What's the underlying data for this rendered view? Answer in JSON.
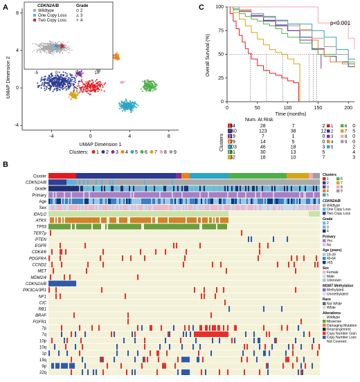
{
  "panels": {
    "a": "A",
    "b": "B",
    "c": "C"
  },
  "colors": {
    "c1": "#e41a1c",
    "c2": "#2b3a8f",
    "c3": "#7b3294",
    "c4": "#ef7f1a",
    "c5": "#2aa5c4",
    "c6": "#4daf4a",
    "c7": "#d4a516",
    "c8": "#f4a6b7",
    "c9": "#9e9e9e",
    "bg": "#f3f1d7",
    "wildtype": "#aaaaaa",
    "one_copy": "#5ab4dc",
    "two_copy": "#d62728",
    "gain": "#e4312b",
    "loss": "#2e5aa8",
    "atrx": "#d4812a",
    "tp53": "#6a9f3a",
    "idh": "#c9e3a9"
  },
  "umap": {
    "xlabel": "UMAP Dimension 1",
    "ylabel": "UMAP Dimension 2",
    "xticks": [
      "-4",
      "0",
      "4",
      "8"
    ],
    "yticks": [
      "-4",
      "0",
      "4",
      "8"
    ],
    "inset_xticks": [
      "-5",
      "0",
      "5",
      "10"
    ],
    "inset_legend_title": "CDKN2A/B",
    "inset_legend": [
      "Wildtype",
      "One Copy Loss",
      "Two Copy Loss"
    ],
    "grade_title": "Grade",
    "grade_legend": [
      "2",
      "3",
      "4"
    ],
    "clusters_label": "Clusters:",
    "clusters": [
      "1",
      "2",
      "3",
      "4",
      "5",
      "6",
      "7",
      "8",
      "9"
    ]
  },
  "chart_data": [
    {
      "type": "scatter",
      "title": "",
      "xlabel": "UMAP Dimension 1",
      "ylabel": "UMAP Dimension 2",
      "xlim": [
        -7,
        9
      ],
      "ylim": [
        -4.5,
        8.5
      ],
      "series": [
        {
          "name": "1",
          "cx": 0.0,
          "cy": 0.1,
          "n": 84
        },
        {
          "name": "2",
          "cx": -3.3,
          "cy": 0.6,
          "n": 240
        },
        {
          "name": "3",
          "cx": -1.2,
          "cy": 1.5,
          "n": 19
        },
        {
          "name": "4",
          "cx": 2.6,
          "cy": 3.3,
          "n": 29
        },
        {
          "name": "5",
          "cx": 3.8,
          "cy": -1.9,
          "n": 103
        },
        {
          "name": "6",
          "cx": 6.0,
          "cy": 0.2,
          "n": 81
        },
        {
          "name": "7",
          "cx": -1.7,
          "cy": -0.8,
          "n": 32
        },
        {
          "name": "8",
          "cx": 3.2,
          "cy": 0.6,
          "n": 8
        },
        {
          "name": "9",
          "cx": 0.8,
          "cy": 1.9,
          "n": 8
        }
      ]
    },
    {
      "type": "line",
      "title": "",
      "pvalue": "p<0.001",
      "xlabel": "Time (months)",
      "ylabel": "Overall Survival (%)",
      "xlim": [
        0,
        210
      ],
      "ylim": [
        0,
        100
      ],
      "xticks": [
        "0",
        "50",
        "100",
        "150",
        "200"
      ],
      "yticks": [
        "0",
        "25",
        "50",
        "75",
        "100"
      ],
      "series": [
        {
          "name": "1",
          "x": [
            0,
            5,
            10,
            15,
            20,
            25,
            30,
            35,
            40,
            50,
            60,
            70,
            80,
            90,
            100,
            110,
            118
          ],
          "y": [
            100,
            93,
            85,
            77,
            70,
            63,
            56,
            51,
            45,
            38,
            33,
            30,
            28,
            25,
            22,
            20,
            0
          ]
        },
        {
          "name": "2",
          "x": [
            0,
            20,
            40,
            60,
            80,
            100,
            120,
            140,
            160,
            180,
            200,
            210
          ],
          "y": [
            100,
            96,
            91,
            86,
            81,
            75,
            68,
            56,
            48,
            42,
            37,
            37
          ]
        },
        {
          "name": "3",
          "x": [
            0,
            20,
            40,
            60,
            80,
            100,
            120,
            140,
            150,
            155
          ],
          "y": [
            100,
            95,
            90,
            85,
            80,
            75,
            65,
            55,
            50,
            35
          ]
        },
        {
          "name": "4",
          "x": [
            0,
            20,
            40,
            60,
            80,
            100,
            120,
            140,
            150,
            160,
            170,
            190,
            210
          ],
          "y": [
            100,
            97,
            93,
            90,
            86,
            82,
            76,
            65,
            55,
            48,
            42,
            40,
            36
          ]
        },
        {
          "name": "5",
          "x": [
            0,
            10,
            20,
            40,
            60,
            80,
            100,
            140,
            160,
            180,
            200,
            210
          ],
          "y": [
            100,
            98,
            96,
            93,
            90,
            86,
            82,
            75,
            68,
            55,
            45,
            44
          ]
        },
        {
          "name": "6",
          "x": [
            0,
            10,
            20,
            30,
            40,
            50,
            60,
            70,
            80,
            90,
            100,
            120,
            140,
            150,
            200,
            210
          ],
          "y": [
            100,
            97,
            93,
            90,
            87,
            85,
            82,
            80,
            77,
            72,
            68,
            62,
            55,
            50,
            40,
            40
          ]
        },
        {
          "name": "7",
          "x": [
            0,
            10,
            20,
            30,
            40,
            50,
            60,
            70,
            80,
            90,
            100,
            110,
            120
          ],
          "y": [
            100,
            94,
            87,
            80,
            73,
            66,
            60,
            55,
            52,
            50,
            45,
            40,
            0
          ]
        },
        {
          "name": "8",
          "x": [
            0,
            80,
            150,
            200,
            210
          ],
          "y": [
            100,
            100,
            83,
            67,
            55
          ]
        },
        {
          "name": "9",
          "x": [
            0,
            20,
            40,
            60,
            80,
            100,
            120,
            140,
            160,
            180,
            200,
            210
          ],
          "y": [
            100,
            96,
            93,
            89,
            85,
            80,
            75,
            67,
            58,
            50,
            42,
            40
          ]
        }
      ]
    }
  ],
  "risk_table": {
    "title": "Num. At Risk",
    "side_label": "Clusters",
    "rows": [
      {
        "cluster": "1",
        "values": [
          "84",
          "28",
          "7",
          "2",
          "0"
        ]
      },
      {
        "cluster": "2",
        "values": [
          "240",
          "123",
          "38",
          "12",
          "5"
        ]
      },
      {
        "cluster": "3",
        "values": [
          "19",
          "7",
          "1",
          "0",
          "0"
        ]
      },
      {
        "cluster": "4",
        "values": [
          "29",
          "14",
          "5",
          "0",
          "0"
        ]
      },
      {
        "cluster": "5",
        "values": [
          "103",
          "46",
          "18",
          "3",
          "2"
        ]
      },
      {
        "cluster": "6",
        "values": [
          "81",
          "30",
          "13",
          "5",
          "4"
        ]
      },
      {
        "cluster": "7",
        "values": [
          "32",
          "18",
          "10",
          "7",
          "3"
        ]
      }
    ],
    "legend": [
      "1",
      "2",
      "3",
      "4",
      "5",
      "6",
      "7",
      "8",
      "9"
    ]
  },
  "heatmap": {
    "rows": [
      "Cluster",
      "CDKN2A/B",
      "Grade",
      "Primary",
      "Age",
      "Sex",
      "IDH1/2",
      "ATRX",
      "TP53",
      "TERTp",
      "PTEN",
      "EGFR",
      "CDK4/6",
      "PDGFRA",
      "CCND2",
      "MET",
      "MDM2/4",
      "CDKN2A/B",
      "PIK3CA/3R1",
      "NF1",
      "CIC",
      "RB1",
      "BRAF",
      "FGFR1",
      "7p",
      "7q",
      "10p",
      "10q",
      "1p",
      "19q",
      "9p",
      "22q"
    ],
    "italic_rows": [
      1,
      6,
      7,
      8,
      9,
      10,
      11,
      12,
      13,
      14,
      15,
      16,
      17,
      18,
      19,
      20,
      21,
      22,
      23
    ]
  },
  "legend": {
    "clusters_title": "Clusters",
    "clusters": [
      "1",
      "2",
      "3",
      "4",
      "5",
      "6",
      "7",
      "8",
      "9"
    ],
    "cdkn_title": "CDKN2A/B",
    "cdkn": [
      "Wildtype",
      "One Copy Loss",
      "Two Copy Loss"
    ],
    "grade_title": "Grade",
    "grade": [
      "2",
      "3",
      "4"
    ],
    "primary_title": "Primary",
    "primary": [
      "Yes",
      "No"
    ],
    "age_title": "Age (years)",
    "age": [
      "19-39",
      "40-64",
      ">65"
    ],
    "sex_title": "Sex",
    "sex": [
      "Female",
      "Male",
      "Unknown"
    ],
    "mgmt_title": "MGMT Methylation",
    "mgmt": [
      "Methylated",
      "Unmethylated"
    ],
    "race_title": "Race",
    "race": [
      "Not White",
      "White"
    ],
    "alt_title": "Alterations",
    "alt": [
      "Wildtype",
      "Missense",
      "Damaging Mutation",
      "Rearrangement",
      "Copy Number Gain",
      "Copy Number Loss",
      "Not Covered"
    ]
  }
}
